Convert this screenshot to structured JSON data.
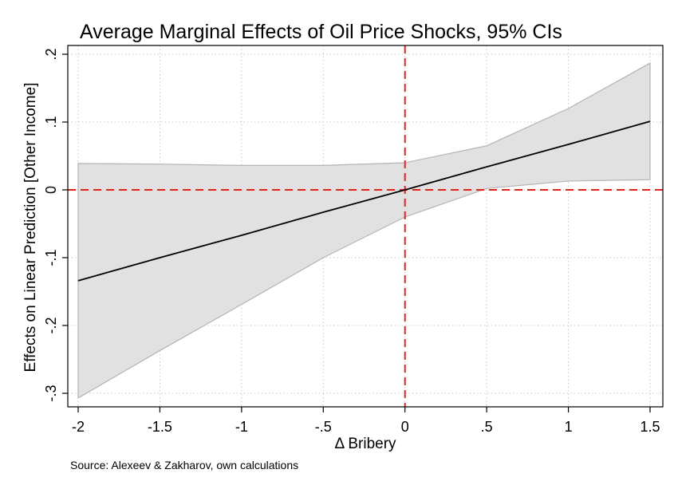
{
  "chart_data": {
    "type": "area",
    "title": "Average Marginal Effects of Oil Price Shocks, 95% CIs",
    "xlabel": "Δ Bribery",
    "ylabel": "Effects on Linear Prediction [Other Income]",
    "note": "Source: Alexeev & Zakharov, own calculations",
    "xlim": [
      -2,
      1.5
    ],
    "ylim": [
      -0.32,
      0.22
    ],
    "x_ticks": [
      -2,
      -1.5,
      -1,
      -0.5,
      0,
      0.5,
      1,
      1.5
    ],
    "x_tick_labels": [
      "-2",
      "-1.5",
      "-1",
      "-.5",
      "0",
      ".5",
      "1",
      "1.5"
    ],
    "y_ticks": [
      -0.3,
      -0.2,
      -0.1,
      0,
      0.1,
      0.2
    ],
    "y_tick_labels": [
      "-.3",
      "-.2",
      "-.1",
      "0",
      ".1",
      ".2"
    ],
    "grid": true,
    "series": [
      {
        "x": [
          -2,
          -1.5,
          -1,
          -0.5,
          0,
          0.5,
          1,
          1.5
        ],
        "estimate": [
          -0.134,
          -0.1,
          -0.067,
          -0.033,
          0.0,
          0.034,
          0.067,
          0.101
        ],
        "ci_lower": [
          -0.307,
          -0.237,
          -0.169,
          -0.1,
          -0.04,
          0.002,
          0.013,
          0.015
        ],
        "ci_upper": [
          0.039,
          0.038,
          0.036,
          0.036,
          0.04,
          0.065,
          0.12,
          0.187
        ]
      }
    ],
    "reference_lines": {
      "x": 0,
      "y": 0,
      "color": "#e8201c",
      "style": "dashed"
    },
    "colors": {
      "ci_fill": "#e1e1e1",
      "ci_edge": "#b4b4b4",
      "line": "#000000",
      "reference": "#e8201c"
    }
  }
}
